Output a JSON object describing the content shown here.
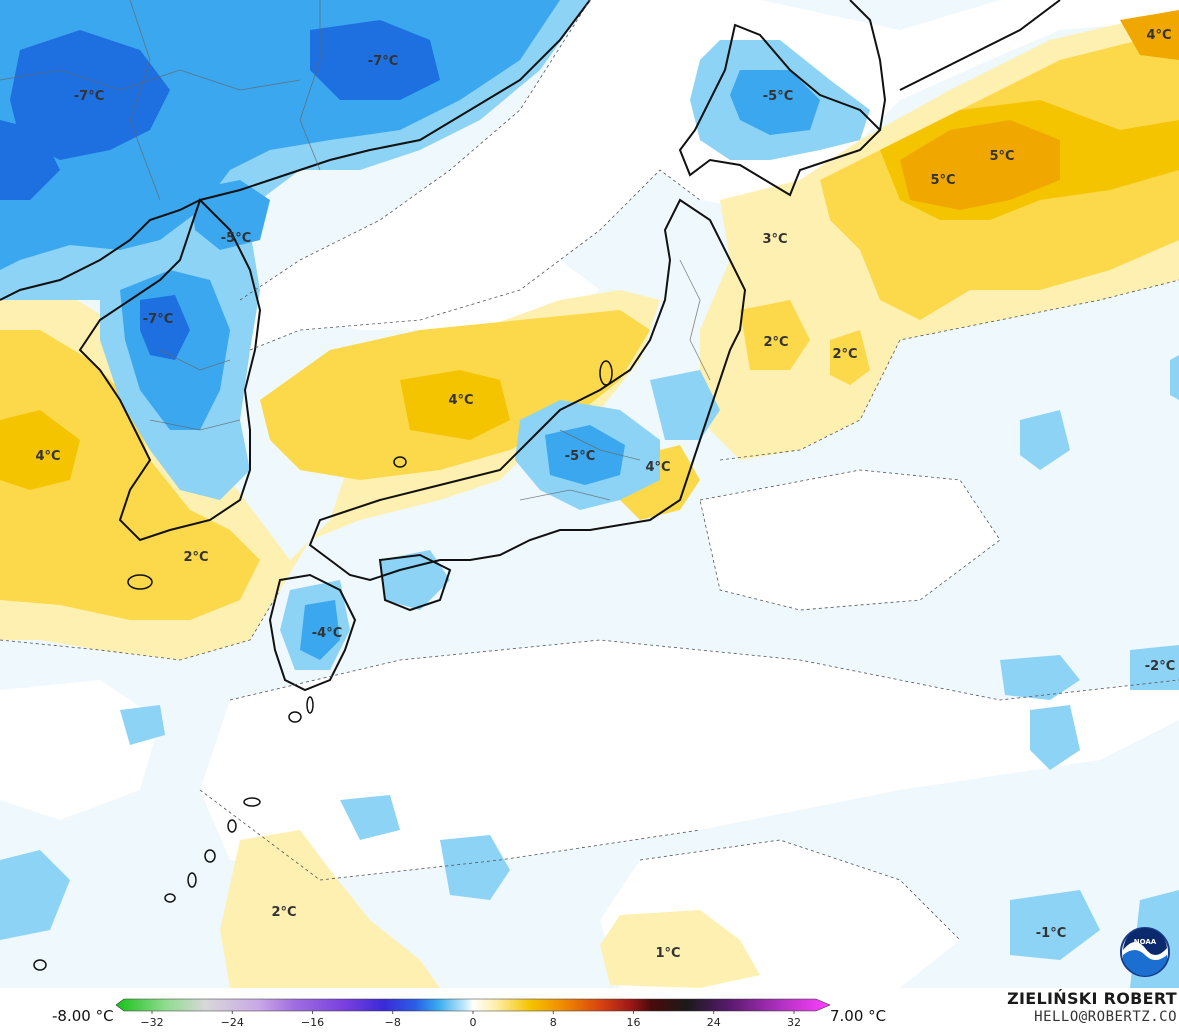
{
  "map": {
    "labels": [
      {
        "text": "-7°C"
      },
      {
        "text": "-7°C"
      },
      {
        "text": "-5°C"
      },
      {
        "text": "4°C"
      },
      {
        "text": "5°C"
      },
      {
        "text": "5°C"
      },
      {
        "text": "-5°C"
      },
      {
        "text": "-7°C"
      },
      {
        "text": "3°C"
      },
      {
        "text": "2°C"
      },
      {
        "text": "2°C"
      },
      {
        "text": "4°C"
      },
      {
        "text": "4°C"
      },
      {
        "text": "-5°C"
      },
      {
        "text": "4°C"
      },
      {
        "text": "2°C"
      },
      {
        "text": "-4°C"
      },
      {
        "text": "-2°C"
      },
      {
        "text": "2°C"
      },
      {
        "text": "1°C"
      },
      {
        "text": "-1°C"
      }
    ],
    "logo": "NOAA"
  },
  "colorbar": {
    "min_label": "-8.00 °C",
    "max_label": "7.00 °C",
    "ticks": [
      "−32",
      "−24",
      "−16",
      "−8",
      "0",
      "8",
      "16",
      "24",
      "32"
    ]
  },
  "credit": {
    "name": "ZIELIŃSKI ROBERT",
    "email": "HELLO@ROBERTZ.CO"
  },
  "colors": {
    "very_cold": "#1e6fe0",
    "cold": "#3aa7ee",
    "cool": "#8dd3f5",
    "cool_light": "#c9ecfb",
    "near_zero": "#eef8fd",
    "neutral": "#ffffff",
    "warm_light": "#fdf0b0",
    "warm": "#fbd94a",
    "warmer": "#f5c400",
    "hot": "#f0a800"
  }
}
